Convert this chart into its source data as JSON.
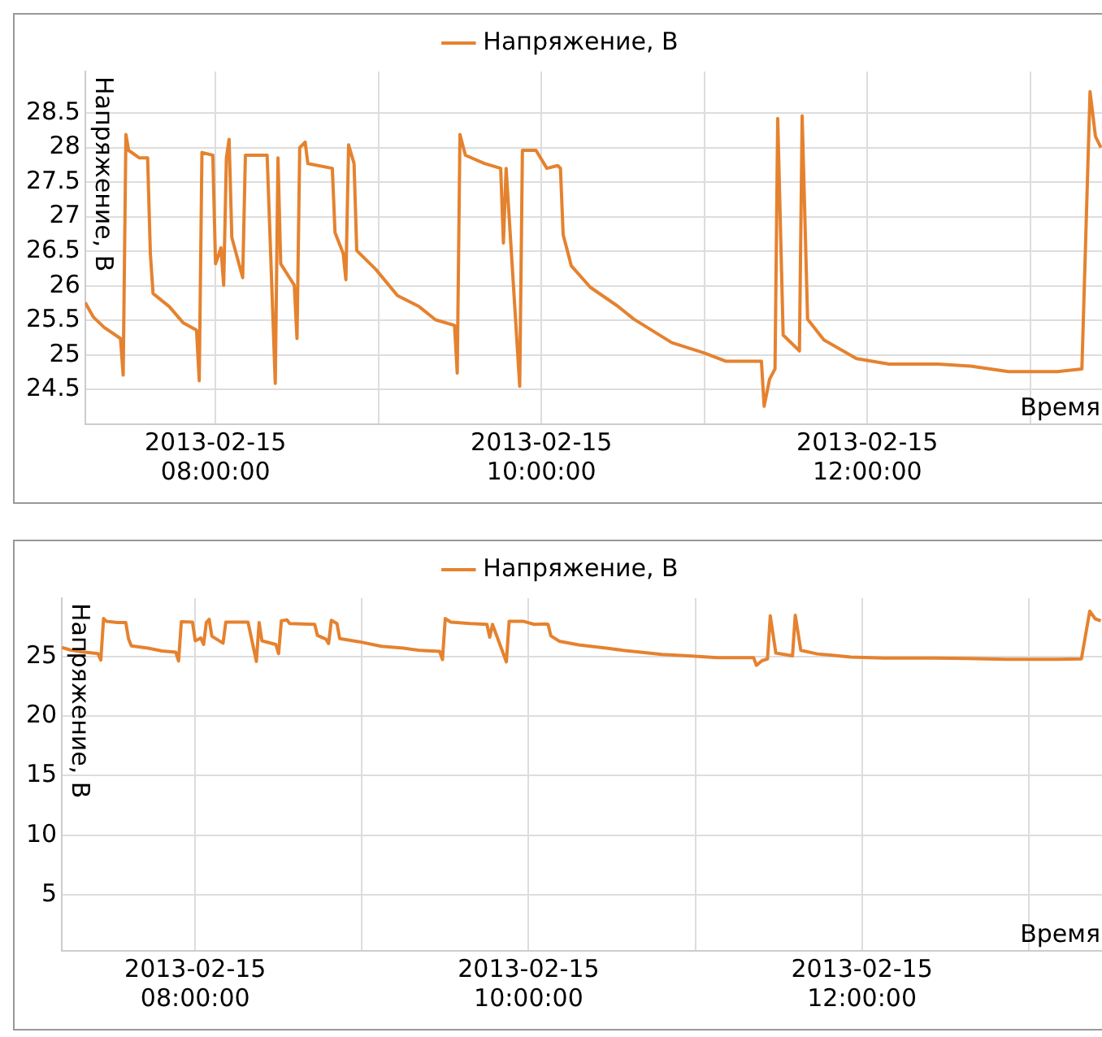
{
  "chart_data": [
    {
      "type": "line",
      "xlabel": "Время",
      "ylabel": "Напряжение, В",
      "x": [
        "2013-02-15T07:12",
        "2013-02-15T07:15",
        "2013-02-15T07:19",
        "2013-02-15T07:25",
        "2013-02-15T07:26",
        "2013-02-15T07:27",
        "2013-02-15T07:28",
        "2013-02-15T07:32",
        "2013-02-15T07:35",
        "2013-02-15T07:36",
        "2013-02-15T07:37",
        "2013-02-15T07:43",
        "2013-02-15T07:48",
        "2013-02-15T07:53",
        "2013-02-15T07:54",
        "2013-02-15T07:55",
        "2013-02-15T07:59",
        "2013-02-15T08:00",
        "2013-02-15T08:02",
        "2013-02-15T08:03",
        "2013-02-15T08:04",
        "2013-02-15T08:05",
        "2013-02-15T08:06",
        "2013-02-15T08:10",
        "2013-02-15T08:11",
        "2013-02-15T08:19",
        "2013-02-15T08:22",
        "2013-02-15T08:23",
        "2013-02-15T08:24",
        "2013-02-15T08:29",
        "2013-02-15T08:30",
        "2013-02-15T08:31",
        "2013-02-15T08:33",
        "2013-02-15T08:34",
        "2013-02-15T08:43",
        "2013-02-15T08:44",
        "2013-02-15T08:47",
        "2013-02-15T08:48",
        "2013-02-15T08:49",
        "2013-02-15T08:51",
        "2013-02-15T08:52",
        "2013-02-15T08:59",
        "2013-02-15T09:07",
        "2013-02-15T09:15",
        "2013-02-15T09:21",
        "2013-02-15T09:28",
        "2013-02-15T09:29",
        "2013-02-15T09:30",
        "2013-02-15T09:32",
        "2013-02-15T09:39",
        "2013-02-15T09:45",
        "2013-02-15T09:46",
        "2013-02-15T09:47",
        "2013-02-15T09:52",
        "2013-02-15T09:53",
        "2013-02-15T09:58",
        "2013-02-15T10:02",
        "2013-02-15T10:06",
        "2013-02-15T10:07",
        "2013-02-15T10:08",
        "2013-02-15T10:11",
        "2013-02-15T10:18",
        "2013-02-15T10:28",
        "2013-02-15T10:34",
        "2013-02-15T10:48",
        "2013-02-15T11:00",
        "2013-02-15T11:08",
        "2013-02-15T11:21",
        "2013-02-15T11:22",
        "2013-02-15T11:24",
        "2013-02-15T11:26",
        "2013-02-15T11:27",
        "2013-02-15T11:29",
        "2013-02-15T11:35",
        "2013-02-15T11:36",
        "2013-02-15T11:38",
        "2013-02-15T11:44",
        "2013-02-15T11:56",
        "2013-02-15T12:08",
        "2013-02-15T12:26",
        "2013-02-15T12:38",
        "2013-02-15T12:52",
        "2013-02-15T13:10",
        "2013-02-15T13:19",
        "2013-02-15T13:22",
        "2013-02-15T13:24",
        "2013-02-15T13:26"
      ],
      "series": [
        {
          "name": "Напряжение, В",
          "color": "#e5822f",
          "values": [
            25.76,
            25.55,
            25.4,
            25.24,
            24.71,
            28.19,
            27.96,
            27.85,
            27.85,
            26.47,
            25.89,
            25.7,
            25.47,
            25.36,
            24.63,
            27.93,
            27.89,
            26.32,
            26.55,
            26.01,
            27.85,
            28.12,
            26.7,
            26.12,
            27.89,
            27.89,
            24.59,
            27.85,
            26.32,
            26.01,
            25.24,
            28.0,
            28.08,
            27.77,
            27.7,
            26.77,
            26.47,
            26.09,
            28.04,
            27.77,
            26.51,
            26.24,
            25.86,
            25.7,
            25.51,
            25.43,
            24.74,
            28.19,
            27.89,
            27.77,
            27.7,
            26.62,
            27.7,
            24.55,
            27.96,
            27.96,
            27.7,
            27.74,
            27.7,
            26.74,
            26.29,
            25.98,
            25.71,
            25.52,
            25.18,
            25.03,
            24.91,
            24.91,
            24.26,
            24.65,
            24.8,
            28.42,
            25.29,
            25.06,
            28.46,
            25.52,
            25.22,
            24.95,
            24.87,
            24.87,
            24.84,
            24.76,
            24.76,
            24.8,
            28.81,
            28.16,
            28.0
          ]
        }
      ],
      "xlim": [
        "2013-02-15T07:12",
        "2013-02-15T13:27"
      ],
      "xticks": [
        {
          "value": "2013-02-15T08:00",
          "label": "2013-02-15\n08:00:00"
        },
        {
          "value": "2013-02-15T09:00",
          "label": null
        },
        {
          "value": "2013-02-15T10:00",
          "label": "2013-02-15\n10:00:00"
        },
        {
          "value": "2013-02-15T11:00",
          "label": null
        },
        {
          "value": "2013-02-15T12:00",
          "label": "2013-02-15\n12:00:00"
        },
        {
          "value": "2013-02-15T13:00",
          "label": null
        }
      ],
      "ylim": [
        24.0,
        29.1
      ],
      "yticks": [
        24.5,
        25,
        25.5,
        26,
        26.5,
        27,
        27.5,
        28,
        28.5
      ],
      "grid": true,
      "legend": "top",
      "marker": "none",
      "line_style": "solid"
    },
    {
      "type": "line",
      "xlabel": "Время",
      "ylabel": "Напряжение, В",
      "x": [
        "2013-02-15T07:12",
        "2013-02-15T07:15",
        "2013-02-15T07:19",
        "2013-02-15T07:25",
        "2013-02-15T07:26",
        "2013-02-15T07:27",
        "2013-02-15T07:28",
        "2013-02-15T07:32",
        "2013-02-15T07:35",
        "2013-02-15T07:36",
        "2013-02-15T07:37",
        "2013-02-15T07:43",
        "2013-02-15T07:48",
        "2013-02-15T07:53",
        "2013-02-15T07:54",
        "2013-02-15T07:55",
        "2013-02-15T07:59",
        "2013-02-15T08:00",
        "2013-02-15T08:02",
        "2013-02-15T08:03",
        "2013-02-15T08:04",
        "2013-02-15T08:05",
        "2013-02-15T08:06",
        "2013-02-15T08:10",
        "2013-02-15T08:11",
        "2013-02-15T08:19",
        "2013-02-15T08:22",
        "2013-02-15T08:23",
        "2013-02-15T08:24",
        "2013-02-15T08:29",
        "2013-02-15T08:30",
        "2013-02-15T08:31",
        "2013-02-15T08:33",
        "2013-02-15T08:34",
        "2013-02-15T08:43",
        "2013-02-15T08:44",
        "2013-02-15T08:47",
        "2013-02-15T08:48",
        "2013-02-15T08:49",
        "2013-02-15T08:51",
        "2013-02-15T08:52",
        "2013-02-15T08:59",
        "2013-02-15T09:07",
        "2013-02-15T09:15",
        "2013-02-15T09:21",
        "2013-02-15T09:28",
        "2013-02-15T09:29",
        "2013-02-15T09:30",
        "2013-02-15T09:32",
        "2013-02-15T09:39",
        "2013-02-15T09:45",
        "2013-02-15T09:46",
        "2013-02-15T09:47",
        "2013-02-15T09:52",
        "2013-02-15T09:53",
        "2013-02-15T09:58",
        "2013-02-15T10:02",
        "2013-02-15T10:06",
        "2013-02-15T10:07",
        "2013-02-15T10:08",
        "2013-02-15T10:11",
        "2013-02-15T10:18",
        "2013-02-15T10:28",
        "2013-02-15T10:34",
        "2013-02-15T10:48",
        "2013-02-15T11:00",
        "2013-02-15T11:08",
        "2013-02-15T11:21",
        "2013-02-15T11:22",
        "2013-02-15T11:24",
        "2013-02-15T11:26",
        "2013-02-15T11:27",
        "2013-02-15T11:29",
        "2013-02-15T11:35",
        "2013-02-15T11:36",
        "2013-02-15T11:38",
        "2013-02-15T11:44",
        "2013-02-15T11:56",
        "2013-02-15T12:08",
        "2013-02-15T12:26",
        "2013-02-15T12:38",
        "2013-02-15T12:52",
        "2013-02-15T13:10",
        "2013-02-15T13:19",
        "2013-02-15T13:22",
        "2013-02-15T13:24",
        "2013-02-15T13:26"
      ],
      "series": [
        {
          "name": "Напряжение, В",
          "color": "#e5822f",
          "values": [
            25.76,
            25.55,
            25.4,
            25.24,
            24.71,
            28.19,
            27.96,
            27.85,
            27.85,
            26.47,
            25.89,
            25.7,
            25.47,
            25.36,
            24.63,
            27.93,
            27.89,
            26.32,
            26.55,
            26.01,
            27.85,
            28.12,
            26.7,
            26.12,
            27.89,
            27.89,
            24.59,
            27.85,
            26.32,
            26.01,
            25.24,
            28.0,
            28.08,
            27.77,
            27.7,
            26.77,
            26.47,
            26.09,
            28.04,
            27.77,
            26.51,
            26.24,
            25.86,
            25.7,
            25.51,
            25.43,
            24.74,
            28.19,
            27.89,
            27.77,
            27.7,
            26.62,
            27.7,
            24.55,
            27.96,
            27.96,
            27.7,
            27.74,
            27.7,
            26.74,
            26.29,
            25.98,
            25.71,
            25.52,
            25.18,
            25.03,
            24.91,
            24.91,
            24.26,
            24.65,
            24.8,
            28.42,
            25.29,
            25.06,
            28.46,
            25.52,
            25.22,
            24.95,
            24.87,
            24.87,
            24.84,
            24.76,
            24.76,
            24.8,
            28.81,
            28.16,
            28.0
          ]
        }
      ],
      "xlim": [
        "2013-02-15T07:12",
        "2013-02-15T13:27"
      ],
      "xticks": [
        {
          "value": "2013-02-15T08:00",
          "label": "2013-02-15\n08:00:00"
        },
        {
          "value": "2013-02-15T09:00",
          "label": null
        },
        {
          "value": "2013-02-15T10:00",
          "label": "2013-02-15\n10:00:00"
        },
        {
          "value": "2013-02-15T11:00",
          "label": null
        },
        {
          "value": "2013-02-15T12:00",
          "label": "2013-02-15\n12:00:00"
        },
        {
          "value": "2013-02-15T13:00",
          "label": null
        }
      ],
      "ylim": [
        0.3,
        29.9
      ],
      "yticks": [
        5,
        10,
        15,
        20,
        25
      ],
      "grid": true,
      "legend": "top",
      "marker": "none",
      "line_style": "solid"
    }
  ]
}
